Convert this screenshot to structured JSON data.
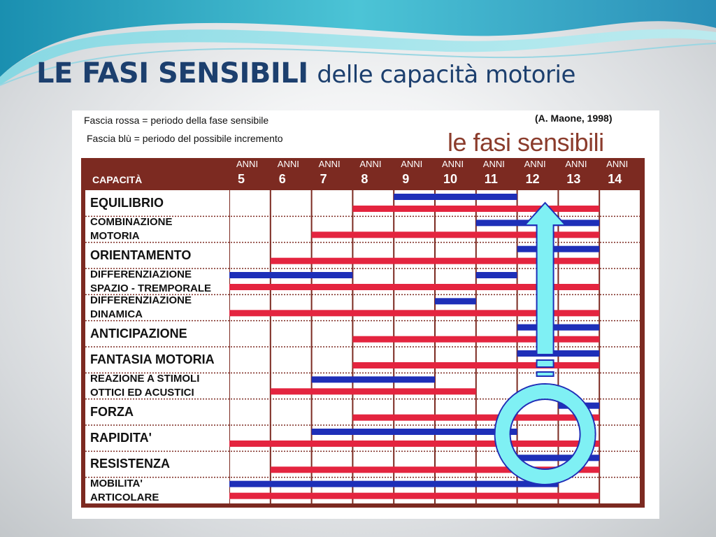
{
  "slide": {
    "title_bold": "LE FASI SENSIBILI",
    "title_rest": "delle capacità motorie"
  },
  "figure": {
    "legend_red": "Fascia rossa  = periodo della fase sensibile",
    "legend_blue": "Fascia blù  = periodo del possibile incremento",
    "credit": "(A. Maone, 1998)",
    "big_title": "le fasi sensibili",
    "header_label": "CAPACITÀ",
    "age_word": "ANNI",
    "ages": [
      "5",
      "6",
      "7",
      "8",
      "9",
      "10",
      "11",
      "12",
      "13",
      "14"
    ],
    "colors": {
      "red": "#e4243f",
      "blue": "#1e2fb8",
      "header": "#7c2a21",
      "arrow": "#7ff0f4"
    },
    "rows": [
      {
        "lines": [
          "EQUILIBRIO"
        ],
        "size": "big",
        "blue": [
          9,
          12
        ],
        "red": [
          8,
          14
        ]
      },
      {
        "lines": [
          "COMBINAZIONE",
          "MOTORIA"
        ],
        "size": "small",
        "blue": [
          11,
          14
        ],
        "red": [
          7,
          14
        ]
      },
      {
        "lines": [
          "ORIENTAMENTO"
        ],
        "size": "big",
        "blue": [
          12,
          14
        ],
        "red": [
          6,
          14
        ]
      },
      {
        "lines": [
          "DIFFERENZIAZIONE",
          "SPAZIO - TREMPORALE"
        ],
        "size": "small",
        "blue_segments": [
          [
            5,
            8
          ],
          [
            11,
            12
          ]
        ],
        "red": [
          5,
          14
        ]
      },
      {
        "lines": [
          "DIFFERENZIAZIONE",
          "DINAMICA"
        ],
        "size": "small",
        "blue": [
          10,
          11
        ],
        "red": [
          5,
          14
        ]
      },
      {
        "lines": [
          "ANTICIPAZIONE"
        ],
        "size": "big",
        "blue": [
          12,
          14
        ],
        "red": [
          8,
          14
        ]
      },
      {
        "lines": [
          "FANTASIA MOTORIA"
        ],
        "size": "big",
        "blue": [
          12,
          14
        ],
        "red": [
          8,
          14
        ]
      },
      {
        "lines": [
          "REAZIONE A STIMOLI",
          "OTTICI ED ACUSTICI"
        ],
        "size": "small",
        "blue": [
          7,
          10
        ],
        "red": [
          6,
          11
        ]
      },
      {
        "lines": [
          "FORZA"
        ],
        "size": "big",
        "blue": [
          13,
          14
        ],
        "red": [
          8,
          14
        ]
      },
      {
        "lines": [
          "RAPIDITA'"
        ],
        "size": "big",
        "blue": [
          7,
          12
        ],
        "red": [
          5,
          14
        ]
      },
      {
        "lines": [
          "RESISTENZA"
        ],
        "size": "big",
        "blue": [
          12,
          14
        ],
        "red": [
          6,
          14
        ]
      },
      {
        "lines": [
          "MOBILITA'",
          "ARTICOLARE"
        ],
        "size": "small",
        "blue": [
          5,
          13
        ],
        "red": [
          5,
          14
        ]
      }
    ]
  }
}
